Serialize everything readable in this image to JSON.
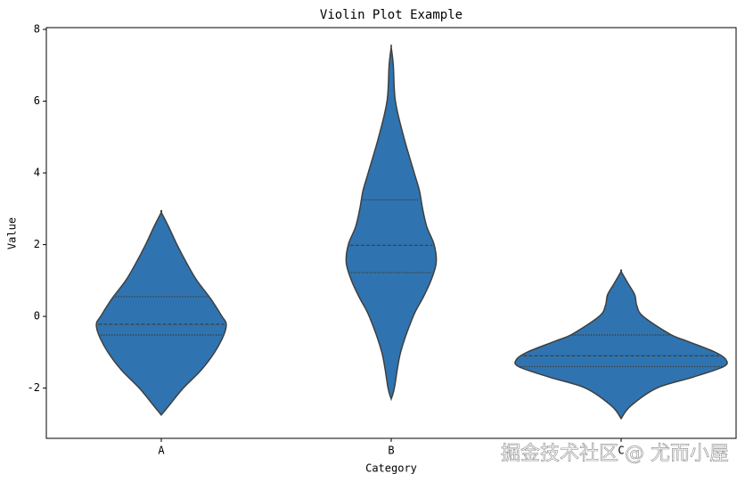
{
  "chart_data": {
    "type": "violin",
    "title": "Violin Plot Example",
    "x_label": "Category",
    "y_label": "Value",
    "categories": [
      "A",
      "B",
      "C"
    ],
    "color": "#2f74b0",
    "ylim": [
      -3.4,
      8.05
    ],
    "yticks": [
      -2,
      0,
      2,
      4,
      6,
      8
    ],
    "series": [
      {
        "y_grid": [
          -2.75,
          -2.5,
          -2,
          -1.5,
          -1,
          -0.5,
          -0.2,
          0,
          0.5,
          1,
          1.5,
          2,
          2.5,
          2.9
        ],
        "density": [
          0,
          0.07,
          0.21,
          0.38,
          0.51,
          0.6,
          0.62,
          0.58,
          0.47,
          0.34,
          0.24,
          0.15,
          0.07,
          0
        ],
        "quartiles": [
          -0.52,
          -0.22,
          0.55
        ]
      },
      {
        "y_grid": [
          -2.3,
          -2,
          -1,
          0,
          0.5,
          1,
          1.5,
          2,
          2.5,
          3,
          3.5,
          4,
          5,
          6,
          7,
          7.5
        ],
        "density": [
          0,
          0.03,
          0.09,
          0.21,
          0.3,
          0.38,
          0.43,
          0.41,
          0.34,
          0.3,
          0.27,
          0.22,
          0.12,
          0.04,
          0.02,
          0
        ],
        "quartiles": [
          1.22,
          1.98,
          3.25
        ]
      },
      {
        "y_grid": [
          -2.85,
          -2.5,
          -2,
          -1.7,
          -1.4,
          -1.2,
          -1,
          -0.7,
          -0.5,
          0,
          0.3,
          0.6,
          0.9,
          1.25
        ],
        "density": [
          0,
          0.09,
          0.34,
          0.68,
          0.98,
          1,
          0.9,
          0.64,
          0.47,
          0.21,
          0.15,
          0.13,
          0.07,
          0
        ],
        "quartiles": [
          -1.4,
          -1.1,
          -0.52
        ]
      }
    ],
    "watermark": "掘金技术社区 @ 尤而小屋"
  }
}
